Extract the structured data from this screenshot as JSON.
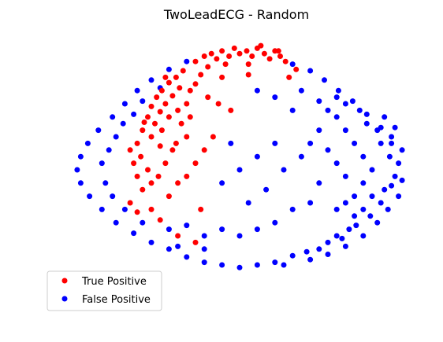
{
  "chart_data": {
    "type": "scatter",
    "title": "TwoLeadECG - Random",
    "xlabel": "",
    "ylabel": "",
    "axes_visible": false,
    "grid": false,
    "legend_position": "lower-left",
    "xlim": [
      -1,
      1
    ],
    "ylim": [
      -1,
      1
    ],
    "series": [
      {
        "name": "True Positive",
        "color": "#ff0000",
        "points": [
          [
            -0.25,
            0.82
          ],
          [
            -0.2,
            0.86
          ],
          [
            -0.16,
            0.88
          ],
          [
            -0.13,
            0.84
          ],
          [
            -0.1,
            0.9
          ],
          [
            -0.06,
            0.86
          ],
          [
            -0.03,
            0.92
          ],
          [
            0.0,
            0.88
          ],
          [
            0.04,
            0.9
          ],
          [
            0.07,
            0.86
          ],
          [
            0.1,
            0.92
          ],
          [
            0.14,
            0.88
          ],
          [
            0.17,
            0.84
          ],
          [
            0.2,
            0.9
          ],
          [
            0.23,
            0.86
          ],
          [
            0.26,
            0.82
          ],
          [
            0.12,
            0.94
          ],
          [
            -0.08,
            0.8
          ],
          [
            -0.18,
            0.78
          ],
          [
            0.05,
            0.8
          ],
          [
            -0.36,
            0.7
          ],
          [
            -0.4,
            0.66
          ],
          [
            -0.44,
            0.6
          ],
          [
            -0.47,
            0.55
          ],
          [
            -0.42,
            0.5
          ],
          [
            -0.38,
            0.56
          ],
          [
            -0.34,
            0.62
          ],
          [
            -0.5,
            0.48
          ],
          [
            -0.45,
            0.44
          ],
          [
            -0.52,
            0.4
          ],
          [
            -0.48,
            0.35
          ],
          [
            -0.55,
            0.3
          ],
          [
            -0.5,
            0.25
          ],
          [
            -0.44,
            0.3
          ],
          [
            -0.4,
            0.4
          ],
          [
            -0.35,
            0.45
          ],
          [
            -0.3,
            0.5
          ],
          [
            -0.33,
            0.35
          ],
          [
            -0.28,
            0.4
          ],
          [
            -0.3,
            0.25
          ],
          [
            -0.58,
            0.2
          ],
          [
            -0.62,
            0.15
          ],
          [
            -0.56,
            0.1
          ],
          [
            -0.6,
            0.05
          ],
          [
            -0.52,
            0.0
          ],
          [
            -0.58,
            -0.05
          ],
          [
            -0.5,
            -0.1
          ],
          [
            -0.55,
            -0.15
          ],
          [
            -0.46,
            -0.05
          ],
          [
            -0.42,
            0.05
          ],
          [
            -0.38,
            0.15
          ],
          [
            -0.45,
            0.18
          ],
          [
            -0.35,
            -0.1
          ],
          [
            -0.4,
            -0.2
          ],
          [
            -0.3,
            -0.05
          ],
          [
            -0.25,
            0.05
          ],
          [
            -0.2,
            0.15
          ],
          [
            -0.15,
            0.25
          ],
          [
            -0.28,
            0.6
          ],
          [
            -0.22,
            0.72
          ],
          [
            -0.62,
            -0.25
          ],
          [
            -0.58,
            -0.32
          ],
          [
            -0.5,
            -0.3
          ],
          [
            -0.45,
            -0.38
          ],
          [
            -0.35,
            -0.5
          ],
          [
            -0.25,
            -0.55
          ],
          [
            -0.42,
            0.7
          ],
          [
            -0.32,
            0.75
          ],
          [
            -0.25,
            0.65
          ],
          [
            -0.18,
            0.55
          ],
          [
            -0.12,
            0.5
          ],
          [
            0.28,
            0.7
          ],
          [
            0.32,
            0.76
          ],
          [
            0.05,
            0.72
          ],
          [
            -0.22,
            -0.3
          ],
          [
            -0.05,
            0.45
          ],
          [
            0.22,
            0.9
          ],
          [
            -0.1,
            0.7
          ],
          [
            -0.54,
            0.36
          ],
          [
            -0.36,
            0.2
          ]
        ]
      },
      {
        "name": "False Positive",
        "color": "#0000ff",
        "points": [
          [
            0.85,
            0.1
          ],
          [
            0.9,
            0.05
          ],
          [
            0.88,
            -0.05
          ],
          [
            0.92,
            0.15
          ],
          [
            0.8,
            0.2
          ],
          [
            0.86,
            0.25
          ],
          [
            0.78,
            0.3
          ],
          [
            0.82,
            -0.15
          ],
          [
            0.75,
            -0.2
          ],
          [
            0.7,
            -0.3
          ],
          [
            0.65,
            -0.35
          ],
          [
            0.72,
            0.35
          ],
          [
            0.68,
            0.45
          ],
          [
            0.6,
            0.5
          ],
          [
            0.55,
            0.55
          ],
          [
            0.62,
            -0.45
          ],
          [
            0.55,
            -0.5
          ],
          [
            0.5,
            -0.55
          ],
          [
            0.45,
            -0.6
          ],
          [
            0.38,
            -0.62
          ],
          [
            0.3,
            -0.65
          ],
          [
            0.2,
            -0.7
          ],
          [
            0.1,
            -0.72
          ],
          [
            0.0,
            -0.74
          ],
          [
            -0.1,
            -0.72
          ],
          [
            -0.2,
            -0.7
          ],
          [
            -0.3,
            -0.66
          ],
          [
            -0.4,
            -0.6
          ],
          [
            -0.5,
            -0.55
          ],
          [
            -0.6,
            -0.48
          ],
          [
            -0.7,
            -0.4
          ],
          [
            -0.78,
            -0.3
          ],
          [
            -0.85,
            -0.2
          ],
          [
            -0.9,
            -0.1
          ],
          [
            -0.92,
            0.0
          ],
          [
            -0.9,
            0.1
          ],
          [
            -0.86,
            0.2
          ],
          [
            -0.8,
            0.3
          ],
          [
            -0.72,
            0.4
          ],
          [
            -0.65,
            0.5
          ],
          [
            -0.58,
            0.6
          ],
          [
            -0.5,
            0.68
          ],
          [
            -0.4,
            0.76
          ],
          [
            -0.3,
            0.82
          ],
          [
            0.3,
            0.8
          ],
          [
            0.4,
            0.75
          ],
          [
            0.48,
            0.68
          ],
          [
            0.56,
            0.6
          ],
          [
            0.64,
            0.52
          ],
          [
            0.72,
            0.42
          ],
          [
            0.8,
            0.32
          ],
          [
            0.86,
            0.2
          ],
          [
            0.9,
            -0.2
          ],
          [
            0.84,
            -0.3
          ],
          [
            0.78,
            -0.4
          ],
          [
            0.7,
            -0.5
          ],
          [
            0.6,
            -0.58
          ],
          [
            0.5,
            -0.64
          ],
          [
            0.4,
            -0.68
          ],
          [
            0.25,
            -0.72
          ],
          [
            0.75,
            0.0
          ],
          [
            0.7,
            0.1
          ],
          [
            0.65,
            0.2
          ],
          [
            0.6,
            0.3
          ],
          [
            0.55,
            0.4
          ],
          [
            0.5,
            0.45
          ],
          [
            0.7,
            -0.1
          ],
          [
            0.65,
            -0.2
          ],
          [
            0.6,
            -0.25
          ],
          [
            0.55,
            -0.3
          ],
          [
            0.45,
            0.3
          ],
          [
            0.4,
            0.2
          ],
          [
            0.35,
            0.1
          ],
          [
            0.45,
            -0.1
          ],
          [
            0.4,
            -0.25
          ],
          [
            0.3,
            -0.3
          ],
          [
            0.2,
            -0.4
          ],
          [
            0.1,
            -0.45
          ],
          [
            0.0,
            -0.5
          ],
          [
            -0.1,
            -0.45
          ],
          [
            -0.2,
            -0.5
          ],
          [
            -0.3,
            -0.42
          ],
          [
            -0.4,
            -0.45
          ],
          [
            -0.55,
            -0.4
          ],
          [
            -0.65,
            -0.3
          ],
          [
            -0.72,
            -0.2
          ],
          [
            -0.76,
            -0.1
          ],
          [
            -0.78,
            0.05
          ],
          [
            -0.74,
            0.15
          ],
          [
            -0.7,
            0.25
          ],
          [
            -0.66,
            0.35
          ],
          [
            -0.6,
            0.42
          ],
          [
            -0.55,
            0.52
          ],
          [
            -0.45,
            0.62
          ],
          [
            0.2,
            0.2
          ],
          [
            0.1,
            0.1
          ],
          [
            0.0,
            0.0
          ],
          [
            -0.1,
            -0.1
          ],
          [
            0.25,
            0.0
          ],
          [
            0.15,
            -0.15
          ],
          [
            -0.05,
            0.2
          ],
          [
            0.05,
            -0.25
          ],
          [
            0.3,
            0.45
          ],
          [
            0.2,
            0.55
          ],
          [
            0.1,
            0.6
          ],
          [
            0.35,
            0.6
          ],
          [
            0.45,
            0.52
          ],
          [
            0.5,
            0.15
          ],
          [
            0.55,
            0.05
          ],
          [
            0.6,
            -0.05
          ],
          [
            0.82,
            0.4
          ],
          [
            0.88,
            0.32
          ],
          [
            0.92,
            -0.08
          ],
          [
            0.86,
            -0.12
          ],
          [
            0.8,
            -0.25
          ],
          [
            0.74,
            -0.35
          ],
          [
            0.66,
            -0.42
          ],
          [
            0.58,
            -0.52
          ],
          [
            -0.2,
            -0.6
          ],
          [
            -0.35,
            -0.58
          ]
        ]
      }
    ],
    "legend": [
      {
        "label": "True Positive",
        "color": "#ff0000"
      },
      {
        "label": "False Positive",
        "color": "#0000ff"
      }
    ]
  }
}
